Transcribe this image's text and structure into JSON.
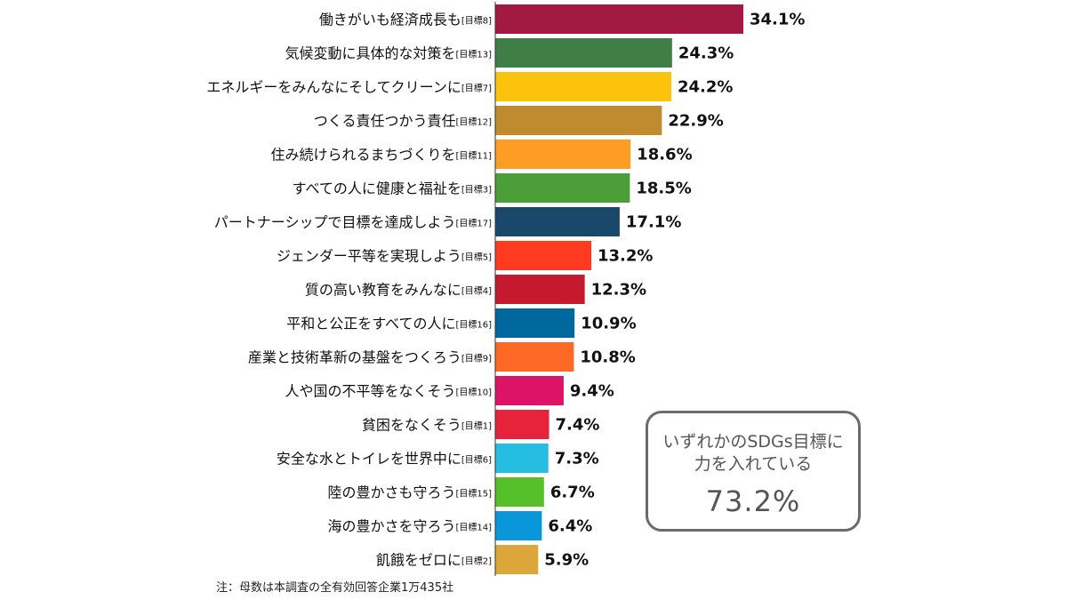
{
  "chart_data": {
    "type": "bar",
    "orientation": "horizontal",
    "categories": [
      {
        "label": "働きがいも経済成長も",
        "tag": "[目標8]"
      },
      {
        "label": "気候変動に具体的な対策を",
        "tag": "[目標13]"
      },
      {
        "label": "エネルギーをみんなにそしてクリーンに",
        "tag": "[目標7]"
      },
      {
        "label": "つくる責任つかう責任",
        "tag": "[目標12]"
      },
      {
        "label": "住み続けられるまちづくりを",
        "tag": "[目標11]"
      },
      {
        "label": "すべての人に健康と福祉を",
        "tag": "[目標3]"
      },
      {
        "label": "パートナーシップで目標を達成しよう",
        "tag": "[目標17]"
      },
      {
        "label": "ジェンダー平等を実現しよう",
        "tag": "[目標5]"
      },
      {
        "label": "質の高い教育をみんなに",
        "tag": "[目標4]"
      },
      {
        "label": "平和と公正をすべての人に",
        "tag": "[目標16]"
      },
      {
        "label": "産業と技術革新の基盤をつくろう",
        "tag": "[目標9]"
      },
      {
        "label": "人や国の不平等をなくそう",
        "tag": "[目標10]"
      },
      {
        "label": "貧困をなくそう",
        "tag": "[目標1]"
      },
      {
        "label": "安全な水とトイレを世界中に",
        "tag": "[目標6]"
      },
      {
        "label": "陸の豊かさも守ろう",
        "tag": "[目標15]"
      },
      {
        "label": "海の豊かさを守ろう",
        "tag": "[目標14]"
      },
      {
        "label": "飢餓をゼロに",
        "tag": "[目標2]"
      }
    ],
    "values": [
      34.1,
      24.3,
      24.2,
      22.9,
      18.6,
      18.5,
      17.1,
      13.2,
      12.3,
      10.9,
      10.8,
      9.4,
      7.4,
      7.3,
      6.7,
      6.4,
      5.9
    ],
    "value_labels": [
      "34.1%",
      "24.3%",
      "24.2%",
      "22.9%",
      "18.6%",
      "18.5%",
      "17.1%",
      "13.2%",
      "12.3%",
      "10.9%",
      "10.8%",
      "9.4%",
      "7.4%",
      "7.3%",
      "6.7%",
      "6.4%",
      "5.9%"
    ],
    "colors": [
      "#a21942",
      "#3f7e44",
      "#fcc30b",
      "#bf8b2e",
      "#fd9d24",
      "#4c9f38",
      "#19486a",
      "#ff3a21",
      "#c5192d",
      "#00689d",
      "#fd6925",
      "#dd1367",
      "#e5243b",
      "#26bde2",
      "#56c02b",
      "#0a97d9",
      "#dda63a"
    ],
    "xlim": [
      0,
      34.1
    ],
    "grid": false,
    "legend": "none"
  },
  "callout": {
    "line1": "いずれかのSDGs目標に",
    "line2": "力を入れている",
    "value": "73.2%"
  },
  "footnote": "注：母数は本調査の全有効回答企業1万435社"
}
